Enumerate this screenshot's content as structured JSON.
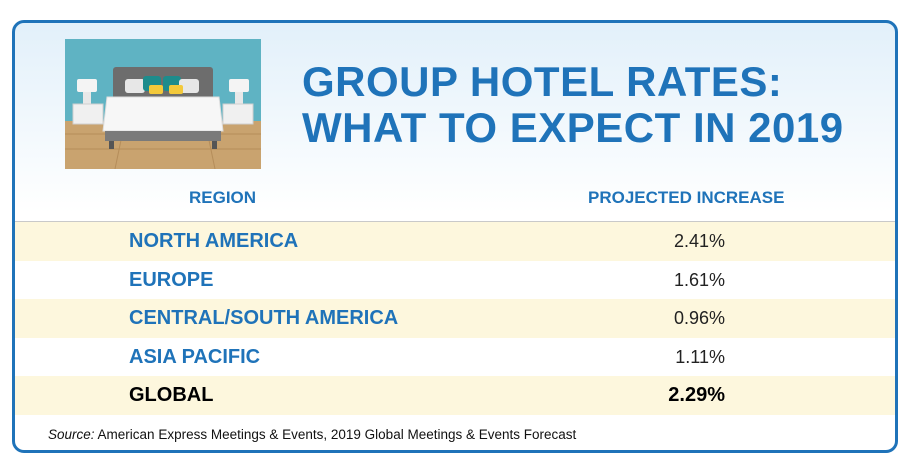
{
  "title_lines": [
    "GROUP HOTEL RATES:",
    "WHAT TO EXPECT IN 2019"
  ],
  "headers": {
    "region": "REGION",
    "projected": "PROJECTED INCREASE"
  },
  "rows": [
    {
      "region": "NORTH AMERICA",
      "value": "2.41%"
    },
    {
      "region": "EUROPE",
      "value": "1.61%"
    },
    {
      "region": "CENTRAL/SOUTH AMERICA",
      "value": "0.96%"
    },
    {
      "region": "ASIA PACIFIC",
      "value": "1.11%"
    },
    {
      "region": "GLOBAL",
      "value": "2.29%"
    }
  ],
  "source_label": "Source:",
  "source_text": "American Express Meetings & Events, 2019 Global Meetings & Events Forecast",
  "colors": {
    "accent": "#1f73b9",
    "row_shade": "#fdf7dd"
  },
  "chart_data": {
    "type": "table",
    "columns": [
      "REGION",
      "PROJECTED INCREASE"
    ],
    "rows": [
      [
        "NORTH AMERICA",
        "2.41%"
      ],
      [
        "EUROPE",
        "1.61%"
      ],
      [
        "CENTRAL/SOUTH AMERICA",
        "0.96%"
      ],
      [
        "ASIA PACIFIC",
        "1.11%"
      ],
      [
        "GLOBAL",
        "2.29%"
      ]
    ]
  }
}
